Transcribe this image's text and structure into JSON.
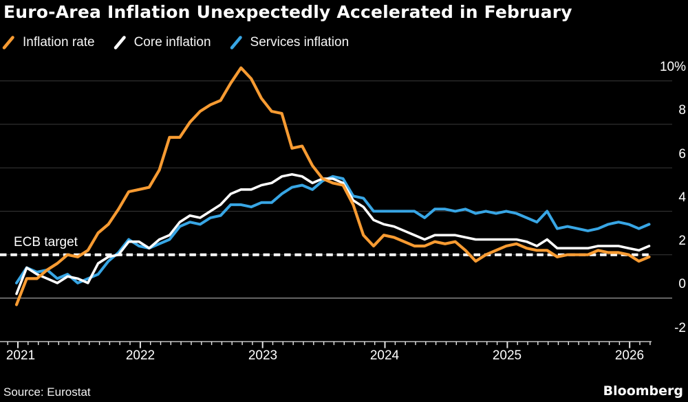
{
  "title": "Euro-Area Inflation Unexpectedly Accelerated in February",
  "source": "Source: Eurostat",
  "brand": "Bloomberg",
  "colors": {
    "background": "#000000",
    "orange": "#f79b32",
    "white": "#ffffff",
    "blue": "#38a6e5",
    "gridline": "#3a3a3a",
    "zero_line": "#c9c9c9",
    "axis": "#e8e8e8"
  },
  "chart_data": {
    "type": "line",
    "unit": "percent, year-over-year",
    "months": [
      "2020-12",
      "2021-01",
      "2021-02",
      "2021-03",
      "2021-04",
      "2021-05",
      "2021-06",
      "2021-07",
      "2021-08",
      "2021-09",
      "2021-10",
      "2021-11",
      "2021-12",
      "2022-01",
      "2022-02",
      "2022-03",
      "2022-04",
      "2022-05",
      "2022-06",
      "2022-07",
      "2022-08",
      "2022-09",
      "2022-10",
      "2022-11",
      "2022-12",
      "2023-01",
      "2023-02",
      "2023-03",
      "2023-04",
      "2023-05",
      "2023-06",
      "2023-07",
      "2023-08",
      "2023-09",
      "2023-10",
      "2023-11",
      "2023-12",
      "2024-01",
      "2024-02",
      "2024-03",
      "2024-04",
      "2024-05",
      "2024-06",
      "2024-07",
      "2024-08",
      "2024-09",
      "2024-10",
      "2024-11",
      "2024-12",
      "2025-01",
      "2025-02",
      "2025-03",
      "2025-04",
      "2025-05",
      "2025-06",
      "2025-07",
      "2025-08",
      "2025-09",
      "2025-10",
      "2025-11",
      "2025-12",
      "2026-01",
      "2026-02"
    ],
    "series": [
      {
        "name": "Inflation rate",
        "color": "#f79b32",
        "values": [
          -0.3,
          0.9,
          0.9,
          1.3,
          1.6,
          2.0,
          1.9,
          2.2,
          3.0,
          3.4,
          4.1,
          4.9,
          5.0,
          5.1,
          5.9,
          7.4,
          7.4,
          8.1,
          8.6,
          8.9,
          9.1,
          9.9,
          10.6,
          10.1,
          9.2,
          8.6,
          8.5,
          6.9,
          7.0,
          6.1,
          5.5,
          5.3,
          5.2,
          4.3,
          2.9,
          2.4,
          2.9,
          2.8,
          2.6,
          2.4,
          2.4,
          2.6,
          2.5,
          2.6,
          2.2,
          1.7,
          2.0,
          2.2,
          2.4,
          2.5,
          2.3,
          2.2,
          2.2,
          1.9,
          2.0,
          2.0,
          2.0,
          2.2,
          2.1,
          2.1,
          2.0,
          1.7,
          1.9
        ]
      },
      {
        "name": "Core inflation",
        "color": "#ffffff",
        "values": [
          0.2,
          1.4,
          1.1,
          0.9,
          0.7,
          1.0,
          0.9,
          0.7,
          1.6,
          1.9,
          2.0,
          2.6,
          2.6,
          2.3,
          2.7,
          2.9,
          3.5,
          3.8,
          3.7,
          4.0,
          4.3,
          4.8,
          5.0,
          5.0,
          5.2,
          5.3,
          5.6,
          5.7,
          5.6,
          5.3,
          5.5,
          5.5,
          5.3,
          4.5,
          4.2,
          3.6,
          3.4,
          3.3,
          3.1,
          2.9,
          2.7,
          2.9,
          2.9,
          2.9,
          2.8,
          2.7,
          2.7,
          2.7,
          2.7,
          2.7,
          2.6,
          2.4,
          2.7,
          2.3,
          2.3,
          2.3,
          2.3,
          2.4,
          2.4,
          2.4,
          2.3,
          2.2,
          2.4
        ]
      },
      {
        "name": "Services inflation",
        "color": "#38a6e5",
        "values": [
          0.7,
          1.4,
          1.2,
          1.3,
          0.9,
          1.1,
          0.7,
          0.9,
          1.1,
          1.7,
          2.1,
          2.7,
          2.4,
          2.3,
          2.5,
          2.7,
          3.3,
          3.5,
          3.4,
          3.7,
          3.8,
          4.3,
          4.3,
          4.2,
          4.4,
          4.4,
          4.8,
          5.1,
          5.2,
          5.0,
          5.4,
          5.6,
          5.5,
          4.7,
          4.6,
          4.0,
          4.0,
          4.0,
          4.0,
          4.0,
          3.7,
          4.1,
          4.1,
          4.0,
          4.1,
          3.9,
          4.0,
          3.9,
          4.0,
          3.9,
          3.7,
          3.5,
          4.0,
          3.2,
          3.3,
          3.2,
          3.1,
          3.2,
          3.4,
          3.5,
          3.4,
          3.2,
          3.4
        ]
      }
    ],
    "y_axis": {
      "tick_labels": [
        "10%",
        "8",
        "6",
        "4",
        "2",
        "0",
        "-2"
      ],
      "tick_values": [
        10,
        8,
        6,
        4,
        2,
        0,
        -2
      ],
      "ylim": [
        -2,
        10.6
      ],
      "grid": true
    },
    "x_axis": {
      "year_labels": [
        "2021",
        "2022",
        "2023",
        "2024",
        "2025",
        "2026"
      ],
      "minor_ticks": "monthly"
    },
    "annotation": {
      "label": "ECB target",
      "value": 2,
      "style": "dashed-white-line"
    },
    "legend_position": "top-left"
  }
}
